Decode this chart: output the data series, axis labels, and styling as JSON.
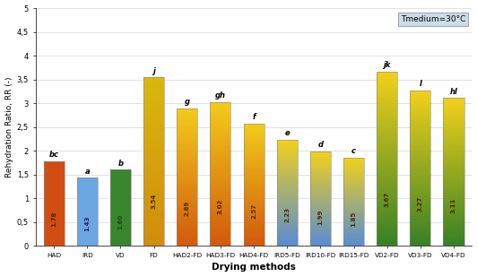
{
  "categories": [
    "HAD",
    "IRD",
    "VD",
    "FD",
    "HAD2-FD",
    "HAD3-FD",
    "HAD4-FD",
    "IRD5-FD",
    "IRD10-FD",
    "IRD15-FD",
    "VD2-FD",
    "VD3-FD",
    "VD4-FD"
  ],
  "values": [
    1.78,
    1.43,
    1.6,
    3.54,
    2.89,
    3.02,
    2.57,
    2.23,
    1.99,
    1.85,
    3.67,
    3.27,
    3.11
  ],
  "letters": [
    "bc",
    "a",
    "b",
    "j",
    "g",
    "gh",
    "f",
    "e",
    "d",
    "c",
    "jk",
    "l",
    "hl"
  ],
  "value_labels": [
    "1.78",
    "1.43",
    "1.60",
    "3.54",
    "2.89",
    "3.02",
    "2.57",
    "2.23",
    "1.99",
    "1.85",
    "3.67",
    "3.27",
    "3.11"
  ],
  "bar_color_types": [
    "solid_orange",
    "solid_blue",
    "solid_green",
    "gold_orange",
    "orange_gold",
    "orange_gold",
    "orange_gold",
    "blue_gold",
    "blue_gold",
    "blue_gold",
    "green_gold",
    "green_gold",
    "green_gold"
  ],
  "ylabel": "Rehydration Ratio, RR (-)",
  "xlabel": "Drying methods",
  "ylim": [
    0,
    5
  ],
  "yticks": [
    0,
    0.5,
    1.0,
    1.5,
    2.0,
    2.5,
    3.0,
    3.5,
    4.0,
    4.5,
    5.0
  ],
  "ytick_labels": [
    "0",
    "0,5",
    "1",
    "1,5",
    "2",
    "2,5",
    "3",
    "3,5",
    "4",
    "4,5",
    "5"
  ],
  "annotation_text": "Tmedium=30°C",
  "annotation_box_color": "#ccdde8",
  "annotation_border_color": "#99aabb"
}
